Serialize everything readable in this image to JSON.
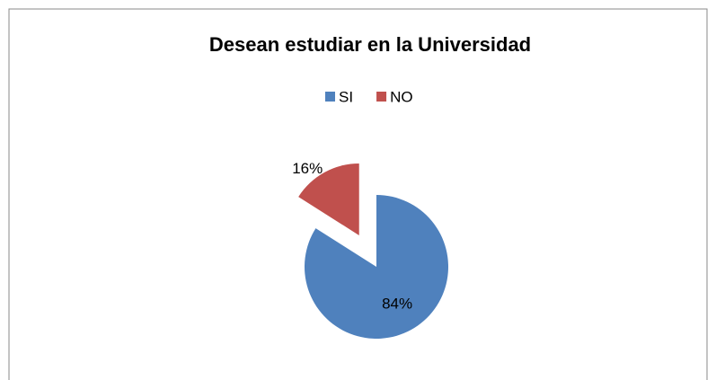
{
  "chart_data": {
    "type": "pie",
    "title": "Desean estudiar en la Universidad",
    "categories": [
      "SI",
      "NO"
    ],
    "values": [
      84,
      16
    ],
    "value_labels": [
      "84%",
      "16%"
    ],
    "colors": [
      "#4f81bd",
      "#c0504d"
    ],
    "legend": "top"
  }
}
